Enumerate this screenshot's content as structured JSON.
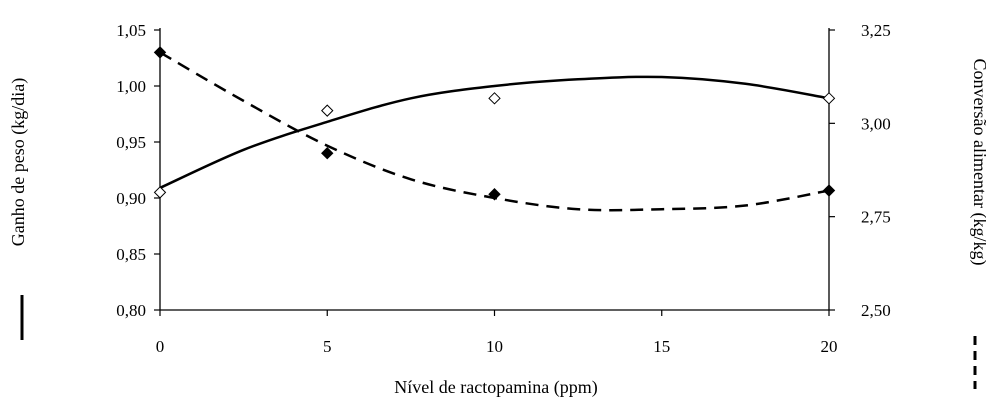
{
  "chart_data": {
    "type": "line",
    "xlabel": "Nível de ractopamina (ppm)",
    "ylabel_left": "Ganho de peso (kg/dia)",
    "ylabel_right": "Conversão alimentar (kg/kg)",
    "x_ticks": [
      "0",
      "5",
      "10",
      "15",
      "20"
    ],
    "y_left_ticks": [
      "0,80",
      "0,85",
      "0,90",
      "0,95",
      "1,00",
      "1,05"
    ],
    "y_right_ticks": [
      "2,50",
      "2,75",
      "3,00",
      "3,25"
    ],
    "xlim": [
      0,
      20
    ],
    "ylim_left": [
      0.8,
      1.05
    ],
    "ylim_right": [
      2.5,
      3.25
    ],
    "grid": false,
    "legend_placement": "beside axis titles (solid line at left, dashed line at right)",
    "series": [
      {
        "axis": "left",
        "line_style": "solid",
        "marker": "open-diamond",
        "points": {
          "x": [
            0,
            5,
            10,
            20
          ],
          "y": [
            0.905,
            0.978,
            0.989,
            0.989
          ]
        },
        "fit": {
          "x": [
            0,
            2.5,
            5,
            7.5,
            10,
            12.5,
            15,
            17.5,
            20
          ],
          "y": [
            0.909,
            0.943,
            0.968,
            0.989,
            1.0,
            1.006,
            1.008,
            1.002,
            0.989
          ]
        }
      },
      {
        "axis": "right",
        "line_style": "dashed",
        "marker": "filled-diamond",
        "points": {
          "x": [
            0,
            5,
            10,
            20
          ],
          "y": [
            3.19,
            2.92,
            2.81,
            2.82
          ]
        },
        "fit": {
          "x": [
            0,
            2.5,
            5,
            7.5,
            10,
            12.5,
            15,
            17.5,
            20
          ],
          "y": [
            3.19,
            3.06,
            2.94,
            2.85,
            2.8,
            2.77,
            2.77,
            2.78,
            2.82
          ]
        }
      }
    ]
  }
}
